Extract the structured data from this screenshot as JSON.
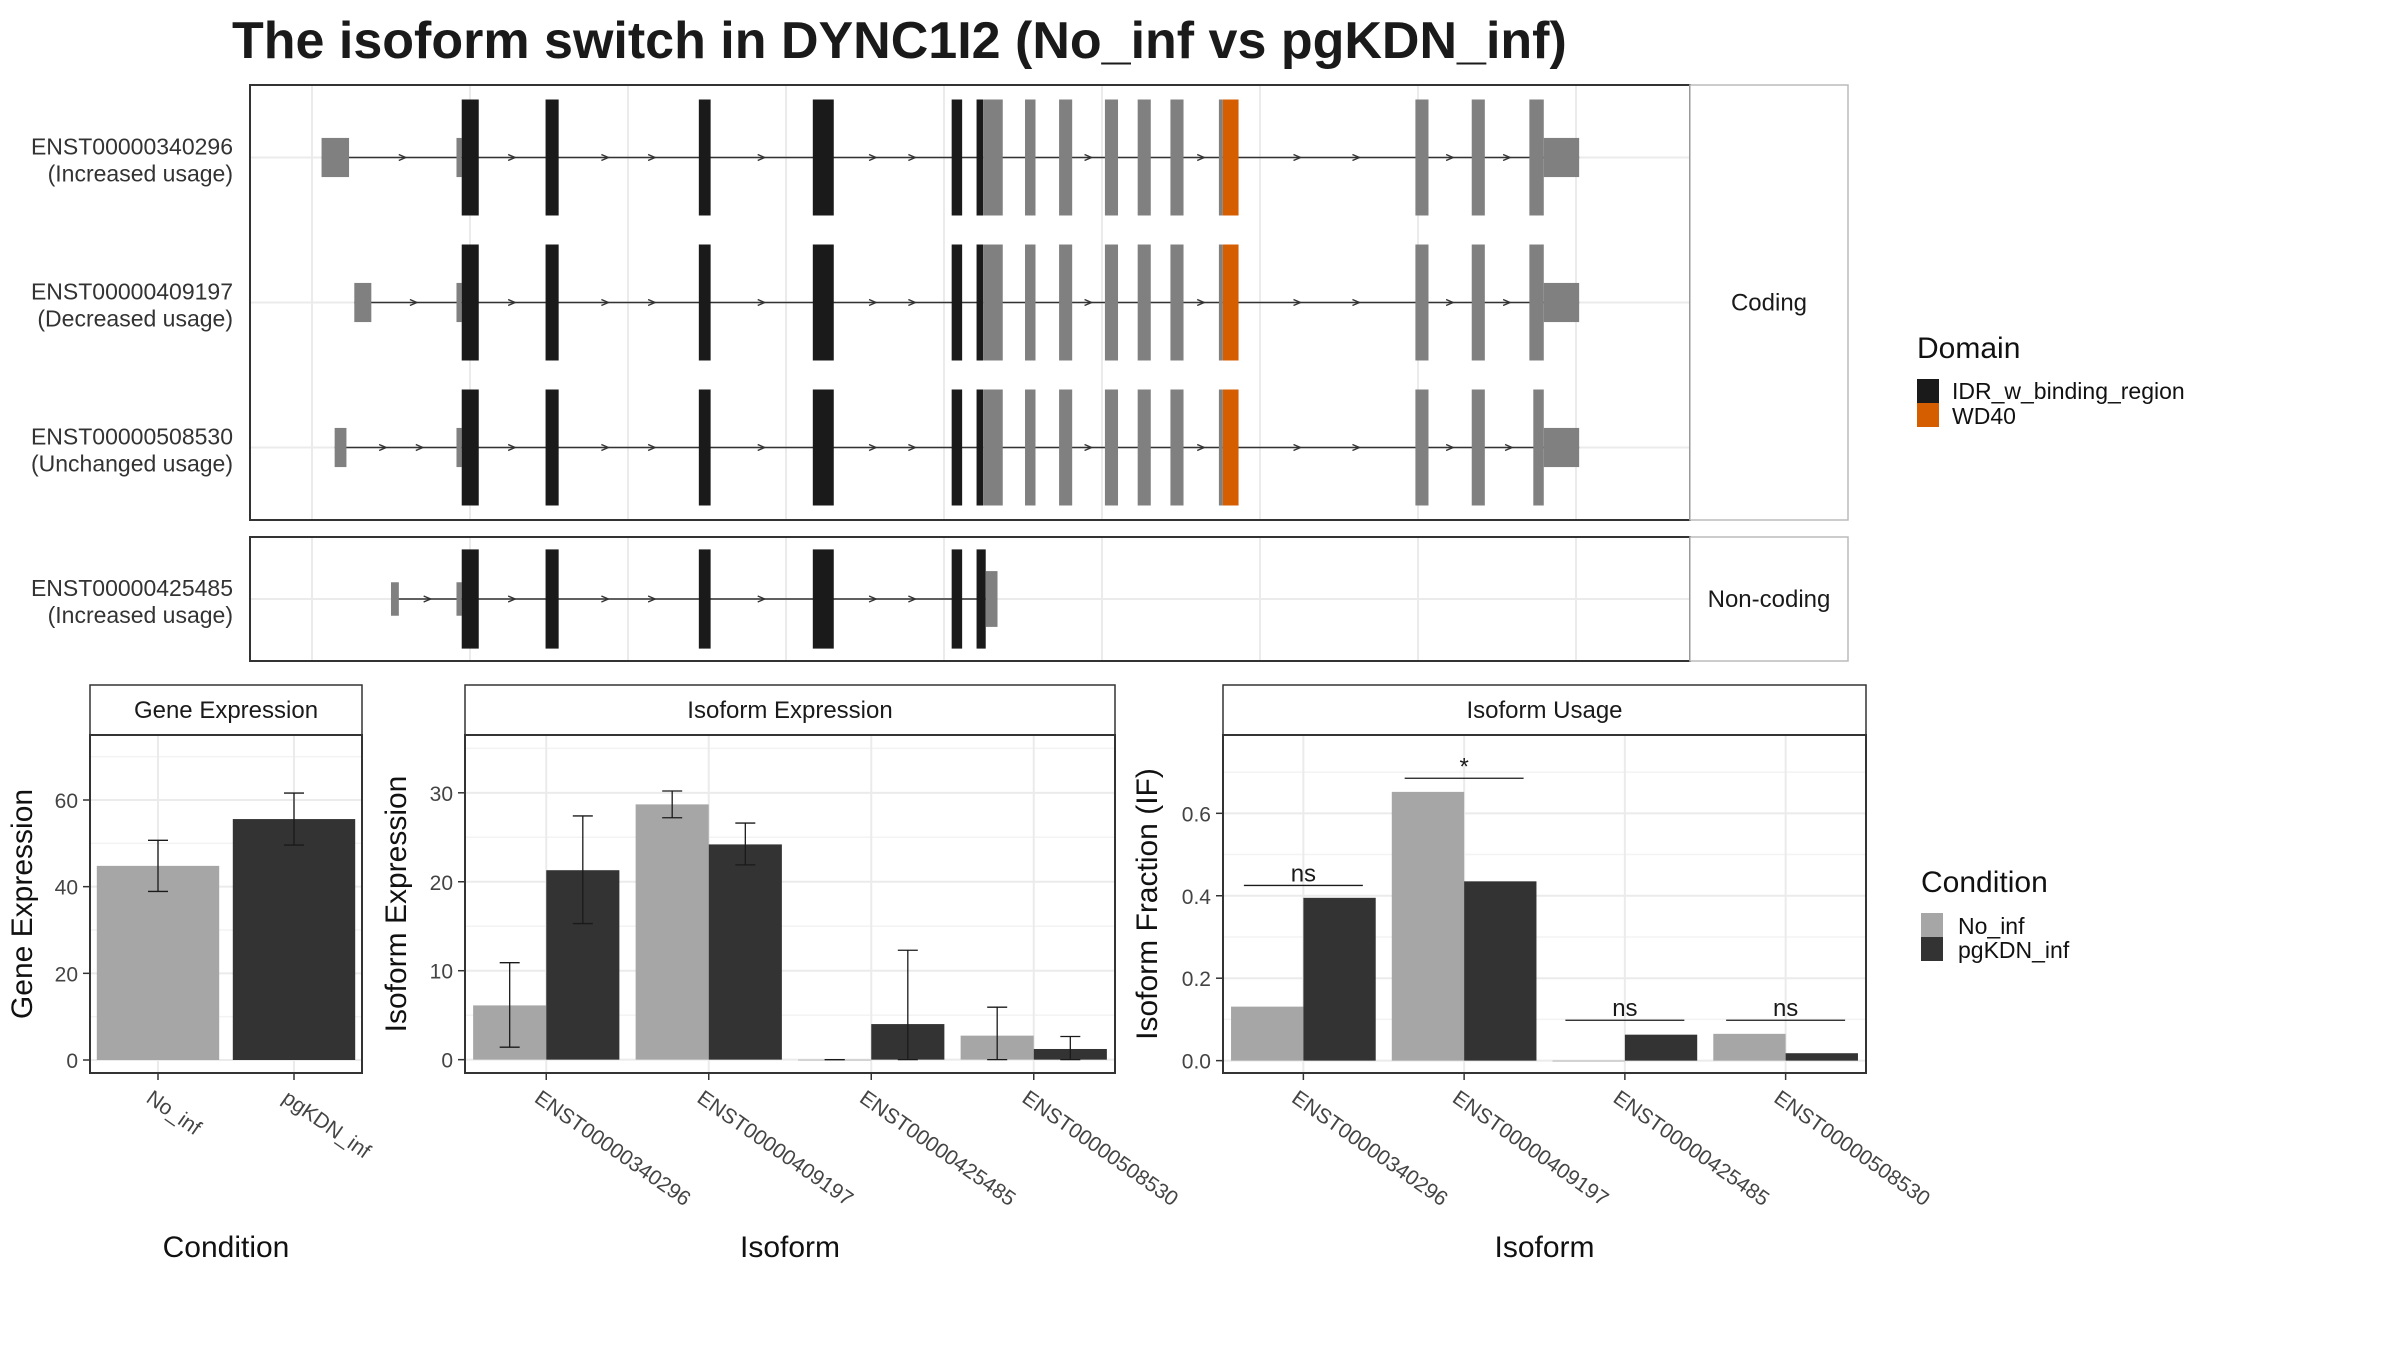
{
  "title": "The isoform switch in DYNC1I2 (No_inf vs pgKDN_inf)",
  "colors": {
    "utr": "#808080",
    "idr": "#1a1a1a",
    "wd40": "#d55e00",
    "no_inf": "#a6a6a6",
    "pgkdn": "#333333",
    "grid": "#ebebeb",
    "strip_fill": "#ffffff"
  },
  "transcript_panel": {
    "genomic_range": [
      0,
      1000
    ],
    "groups": [
      {
        "label": "Coding",
        "tracks": [
          {
            "id": "ENST00000340296",
            "usage": "(Increased usage)",
            "exons": [
              [
                5,
                26,
                "utr"
              ],
              [
                108,
                112,
                "utr"
              ],
              [
                112,
                125,
                "idr"
              ],
              [
                176,
                186,
                "idr"
              ],
              [
                293,
                302,
                "idr"
              ],
              [
                380,
                396,
                "idr"
              ],
              [
                486,
                494,
                "idr"
              ],
              [
                505,
                510,
                "idr"
              ],
              [
                510,
                525,
                "utr"
              ],
              [
                542,
                550,
                "utr"
              ],
              [
                568,
                578,
                "utr"
              ],
              [
                603,
                613,
                "utr"
              ],
              [
                628,
                638,
                "utr"
              ],
              [
                653,
                663,
                "utr"
              ],
              [
                690,
                693,
                "utr"
              ],
              [
                693,
                705,
                "wd40"
              ],
              [
                840,
                850,
                "utr"
              ],
              [
                883,
                893,
                "utr"
              ],
              [
                927,
                938,
                "utr"
              ],
              [
                938,
                965,
                "utr"
              ]
            ]
          },
          {
            "id": "ENST00000409197",
            "usage": "(Decreased usage)",
            "exons": [
              [
                30,
                43,
                "utr"
              ],
              [
                108,
                112,
                "utr"
              ],
              [
                112,
                125,
                "idr"
              ],
              [
                176,
                186,
                "idr"
              ],
              [
                293,
                302,
                "idr"
              ],
              [
                380,
                396,
                "idr"
              ],
              [
                486,
                494,
                "idr"
              ],
              [
                505,
                510,
                "idr"
              ],
              [
                510,
                525,
                "utr"
              ],
              [
                542,
                550,
                "utr"
              ],
              [
                568,
                578,
                "utr"
              ],
              [
                603,
                613,
                "utr"
              ],
              [
                628,
                638,
                "utr"
              ],
              [
                653,
                663,
                "utr"
              ],
              [
                690,
                693,
                "utr"
              ],
              [
                693,
                705,
                "wd40"
              ],
              [
                840,
                850,
                "utr"
              ],
              [
                883,
                893,
                "utr"
              ],
              [
                927,
                938,
                "utr"
              ],
              [
                938,
                965,
                "utr"
              ]
            ]
          },
          {
            "id": "ENST00000508530",
            "usage": "(Unchanged usage)",
            "exons": [
              [
                15,
                24,
                "utr"
              ],
              [
                108,
                112,
                "utr"
              ],
              [
                112,
                125,
                "idr"
              ],
              [
                176,
                186,
                "idr"
              ],
              [
                293,
                302,
                "idr"
              ],
              [
                380,
                396,
                "idr"
              ],
              [
                486,
                494,
                "idr"
              ],
              [
                505,
                510,
                "idr"
              ],
              [
                510,
                525,
                "utr"
              ],
              [
                542,
                550,
                "utr"
              ],
              [
                568,
                578,
                "utr"
              ],
              [
                603,
                613,
                "utr"
              ],
              [
                628,
                638,
                "utr"
              ],
              [
                653,
                663,
                "utr"
              ],
              [
                690,
                693,
                "utr"
              ],
              [
                693,
                705,
                "wd40"
              ],
              [
                840,
                850,
                "utr"
              ],
              [
                883,
                893,
                "utr"
              ],
              [
                930,
                938,
                "utr"
              ],
              [
                938,
                965,
                "utr"
              ]
            ]
          }
        ]
      },
      {
        "label": "Non-coding",
        "tracks": [
          {
            "id": "ENST00000425485",
            "usage": "(Increased usage)",
            "exons": [
              [
                58,
                64,
                "utr"
              ],
              [
                108,
                112,
                "utr"
              ],
              [
                112,
                125,
                "idr"
              ],
              [
                176,
                186,
                "idr"
              ],
              [
                293,
                302,
                "idr"
              ],
              [
                380,
                396,
                "idr"
              ],
              [
                486,
                494,
                "idr"
              ],
              [
                505,
                512,
                "idr"
              ],
              [
                512,
                521,
                "utr"
              ]
            ]
          }
        ]
      }
    ]
  },
  "domain_legend": {
    "title": "Domain",
    "items": [
      {
        "label": "IDR_w_binding_region",
        "color": "#1a1a1a"
      },
      {
        "label": "WD40",
        "color": "#d55e00"
      }
    ]
  },
  "condition_legend": {
    "title": "Condition",
    "items": [
      {
        "label": "No_inf",
        "color": "#a6a6a6"
      },
      {
        "label": "pgKDN_inf",
        "color": "#333333"
      }
    ]
  },
  "chart_data": [
    {
      "type": "bar",
      "strip": "Gene Expression",
      "xlabel": "Condition",
      "ylabel": "Gene Expression",
      "categories": [
        "No_inf",
        "pgKDN_inf"
      ],
      "values": [
        44.8,
        55.6
      ],
      "error_low": [
        38.9,
        49.6
      ],
      "error_high": [
        50.7,
        61.6
      ],
      "ylim": [
        -3,
        75
      ],
      "yticks": [
        0,
        20,
        40,
        60
      ],
      "yticklabels": [
        "0",
        "20",
        "40",
        "60"
      ]
    },
    {
      "type": "bar",
      "strip": "Isoform Expression",
      "xlabel": "Isoform",
      "ylabel": "Isoform Expression",
      "categories": [
        "ENST00000340296",
        "ENST00000409197",
        "ENST00000425485",
        "ENST00000508530"
      ],
      "series": [
        {
          "name": "No_inf",
          "values": [
            6.1,
            28.7,
            0.0,
            2.7
          ],
          "error_low": [
            1.4,
            27.2,
            0.0,
            0.0
          ],
          "error_high": [
            10.9,
            30.2,
            0.0,
            5.9
          ]
        },
        {
          "name": "pgKDN_inf",
          "values": [
            21.3,
            24.2,
            4.0,
            1.2
          ],
          "error_low": [
            15.3,
            21.9,
            0.0,
            0.0
          ],
          "error_high": [
            27.4,
            26.6,
            12.3,
            2.6
          ]
        }
      ],
      "ylim": [
        -1.5,
        36.5
      ],
      "yticks": [
        0,
        10,
        20,
        30
      ],
      "yticklabels": [
        "0",
        "10",
        "20",
        "30"
      ]
    },
    {
      "type": "bar",
      "strip": "Isoform Usage",
      "xlabel": "Isoform",
      "ylabel": "Isoform Fraction (IF)",
      "categories": [
        "ENST00000340296",
        "ENST00000409197",
        "ENST00000425485",
        "ENST00000508530"
      ],
      "series": [
        {
          "name": "No_inf",
          "values": [
            0.131,
            0.652,
            0.0,
            0.065
          ]
        },
        {
          "name": "pgKDN_inf",
          "values": [
            0.395,
            0.435,
            0.063,
            0.018
          ]
        }
      ],
      "significance": [
        {
          "label": "ns",
          "y": 0.425
        },
        {
          "label": "*",
          "y": 0.685
        },
        {
          "label": "ns",
          "y": 0.098
        },
        {
          "label": "ns",
          "y": 0.098
        }
      ],
      "ylim": [
        -0.03,
        0.79
      ],
      "yticks": [
        0.0,
        0.2,
        0.4,
        0.6
      ],
      "yticklabels": [
        "0.0",
        "0.2",
        "0.4",
        "0.6"
      ]
    }
  ]
}
